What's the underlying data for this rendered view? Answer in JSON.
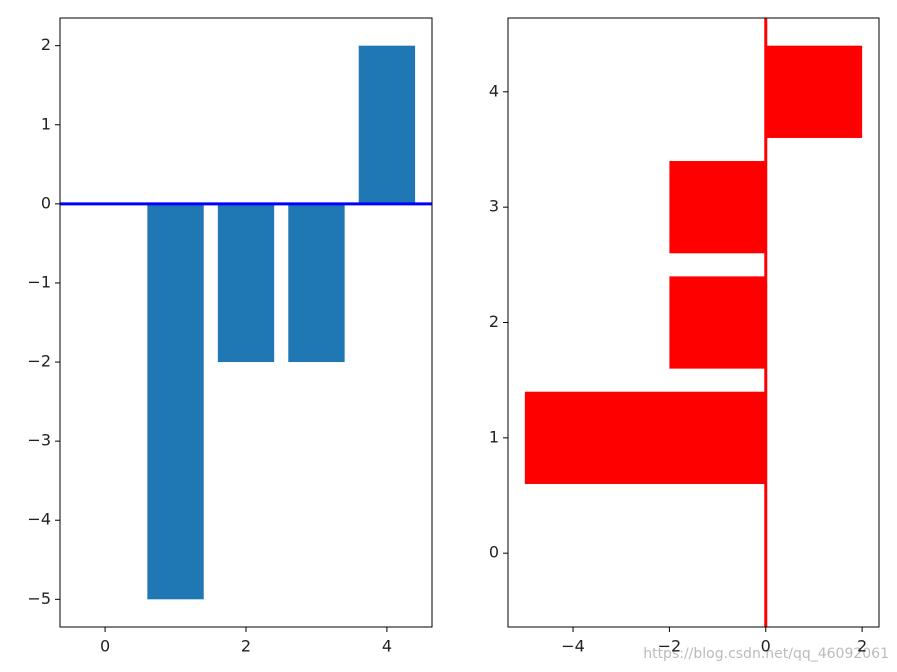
{
  "chart_data": [
    {
      "type": "bar",
      "categories": [
        0,
        1,
        2,
        3,
        4
      ],
      "values": [
        0,
        -5,
        -2,
        -2,
        2
      ],
      "color": "#1f77b4",
      "xlim": [
        -0.64,
        4.64
      ],
      "xticks": [
        0,
        2,
        4
      ],
      "ylim": [
        -5.35,
        2.35
      ],
      "yticks": [
        {
          "value": -5,
          "label": "−5"
        },
        {
          "value": -4,
          "label": "−4"
        },
        {
          "value": -3,
          "label": "−3"
        },
        {
          "value": -2,
          "label": "−2"
        },
        {
          "value": -1,
          "label": "−1"
        },
        0,
        1,
        2
      ],
      "refline": 0,
      "refline_color": "#0000ff"
    },
    {
      "type": "barh",
      "categories": [
        0,
        1,
        2,
        3,
        4
      ],
      "values": [
        0,
        -5,
        -2,
        -2,
        2
      ],
      "color": "#ff0000",
      "xlim": [
        -5.35,
        2.35
      ],
      "xticks": [
        {
          "value": -4,
          "label": "−4"
        },
        {
          "value": -2,
          "label": "−2"
        },
        0,
        2
      ],
      "ylim": [
        -0.64,
        4.64
      ],
      "yticks": [
        0,
        1,
        2,
        3,
        4
      ],
      "refline": 0,
      "refline_color": "#ff0000"
    }
  ],
  "watermark": "https://blog.csdn.net/qq_46092061"
}
